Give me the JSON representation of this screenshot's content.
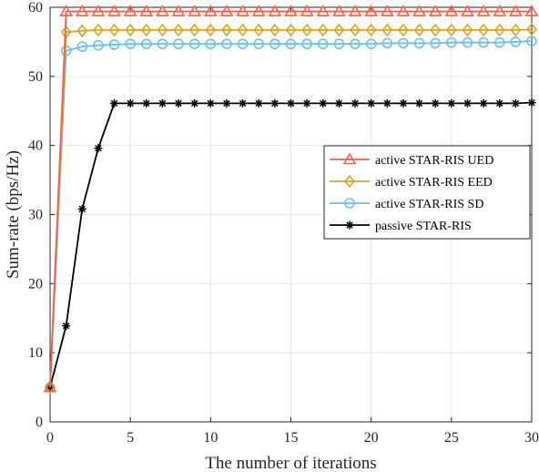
{
  "chart_data": {
    "type": "line",
    "xlabel": "The number of iterations",
    "ylabel": "Sum-rate (bps/Hz)",
    "xlim": [
      0,
      30
    ],
    "ylim": [
      0,
      60
    ],
    "xticks": [
      0,
      5,
      10,
      15,
      20,
      25,
      30
    ],
    "yticks": [
      0,
      10,
      20,
      30,
      40,
      50,
      60
    ],
    "grid": true,
    "legend_position": "center-right",
    "x": [
      0,
      1,
      2,
      3,
      4,
      5,
      6,
      7,
      8,
      9,
      10,
      11,
      12,
      13,
      14,
      15,
      16,
      17,
      18,
      19,
      20,
      21,
      22,
      23,
      24,
      25,
      26,
      27,
      28,
      29,
      30
    ],
    "series": [
      {
        "name": "active STAR-RIS UED",
        "color": "#F0604A",
        "marker": "triangle",
        "values": [
          5,
          59.4,
          59.4,
          59.4,
          59.4,
          59.4,
          59.4,
          59.4,
          59.4,
          59.4,
          59.4,
          59.4,
          59.4,
          59.4,
          59.4,
          59.4,
          59.4,
          59.4,
          59.4,
          59.4,
          59.4,
          59.4,
          59.4,
          59.4,
          59.4,
          59.4,
          59.4,
          59.4,
          59.4,
          59.4,
          59.4
        ]
      },
      {
        "name": "active STAR-RIS EED",
        "color": "#D9A21E",
        "marker": "diamond",
        "values": [
          5,
          56.4,
          56.6,
          56.7,
          56.7,
          56.7,
          56.7,
          56.7,
          56.7,
          56.7,
          56.7,
          56.7,
          56.7,
          56.7,
          56.7,
          56.7,
          56.7,
          56.7,
          56.7,
          56.7,
          56.7,
          56.7,
          56.7,
          56.7,
          56.7,
          56.7,
          56.7,
          56.7,
          56.7,
          56.7,
          56.8
        ]
      },
      {
        "name": "active STAR-RIS SD",
        "color": "#66C0EA",
        "marker": "circle",
        "values": [
          5,
          53.7,
          54.3,
          54.5,
          54.6,
          54.7,
          54.7,
          54.7,
          54.7,
          54.7,
          54.7,
          54.7,
          54.7,
          54.7,
          54.7,
          54.7,
          54.7,
          54.7,
          54.7,
          54.7,
          54.7,
          54.8,
          54.8,
          54.8,
          54.8,
          54.9,
          54.9,
          54.9,
          54.9,
          55.0,
          55.1
        ]
      },
      {
        "name": "passive STAR-RIS",
        "color": "#000000",
        "marker": "asterisk",
        "values": [
          5,
          13.9,
          30.8,
          39.6,
          46.1,
          46.1,
          46.1,
          46.1,
          46.1,
          46.1,
          46.1,
          46.1,
          46.1,
          46.1,
          46.1,
          46.1,
          46.1,
          46.1,
          46.1,
          46.1,
          46.1,
          46.1,
          46.1,
          46.1,
          46.1,
          46.1,
          46.1,
          46.1,
          46.1,
          46.1,
          46.2
        ]
      }
    ]
  }
}
